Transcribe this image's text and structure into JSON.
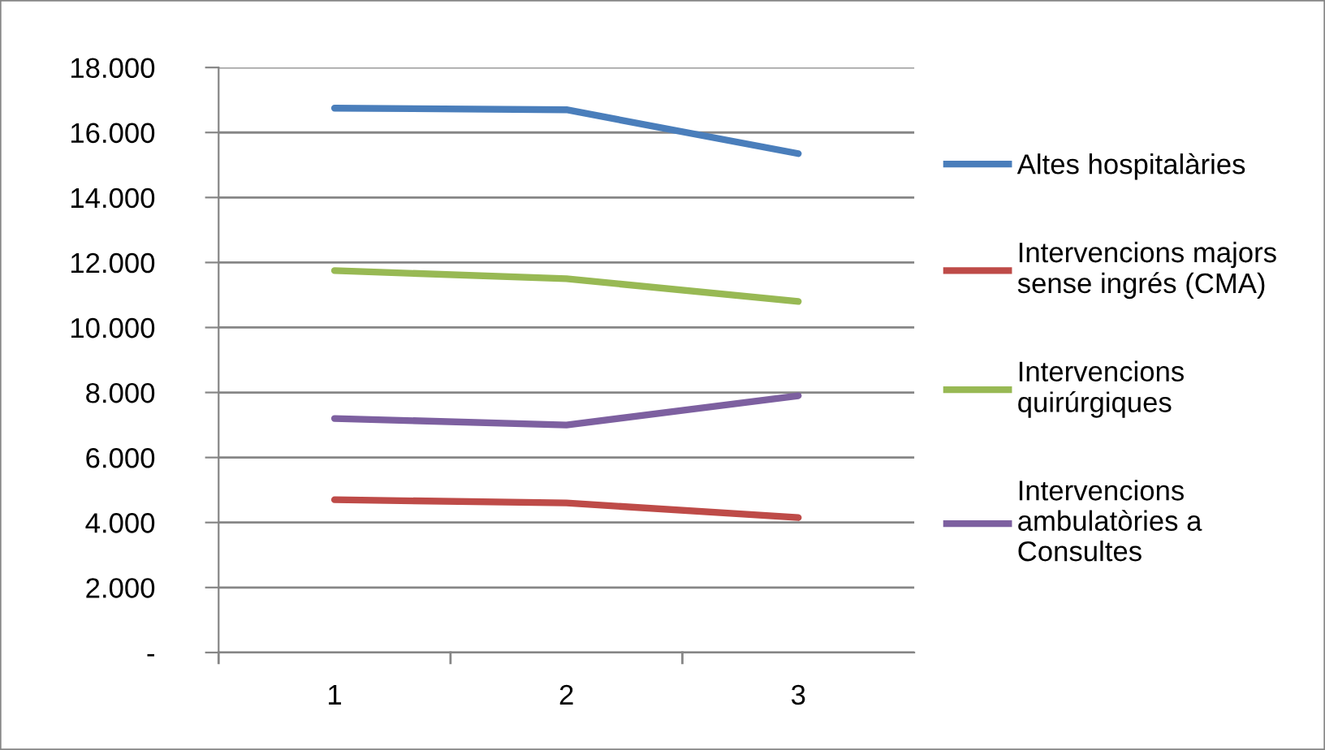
{
  "chart_data": {
    "type": "line",
    "categories": [
      "1",
      "2",
      "3"
    ],
    "series": [
      {
        "name": "Altes hospitalàries",
        "color": "#4a7ebb",
        "values": [
          16750,
          16700,
          15350
        ]
      },
      {
        "name": "Intervencions majors\nsense ingrés (CMA)",
        "color": "#be4b48",
        "values": [
          4700,
          4600,
          4150
        ]
      },
      {
        "name": "Intervencions\nquirúrgiques",
        "color": "#98b954",
        "values": [
          11750,
          11500,
          10800
        ]
      },
      {
        "name": "Intervencions\nambulatòries a\nConsultes",
        "color": "#7d60a0",
        "values": [
          7200,
          7000,
          7900
        ]
      }
    ],
    "ylim": [
      0,
      18000
    ],
    "yticks": [
      {
        "value": 0,
        "label": "-"
      },
      {
        "value": 2000,
        "label": "2.000"
      },
      {
        "value": 4000,
        "label": "4.000"
      },
      {
        "value": 6000,
        "label": "6.000"
      },
      {
        "value": 8000,
        "label": "8.000"
      },
      {
        "value": 10000,
        "label": "10.000"
      },
      {
        "value": 12000,
        "label": "12.000"
      },
      {
        "value": 14000,
        "label": "14.000"
      },
      {
        "value": 16000,
        "label": "16.000"
      },
      {
        "value": 18000,
        "label": "18.000"
      }
    ],
    "grid": "y",
    "legend": "right",
    "marker": "none",
    "line_style": "solid"
  }
}
